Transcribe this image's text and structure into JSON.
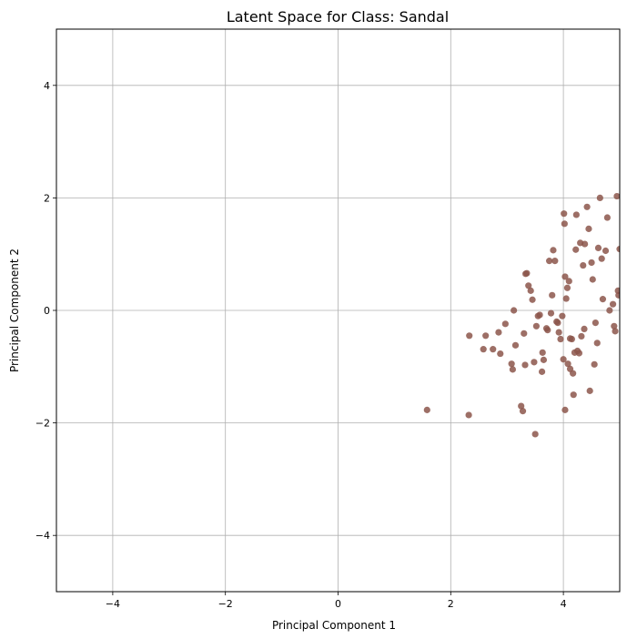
{
  "chart_data": {
    "type": "scatter",
    "title": "Latent Space for Class: Sandal",
    "xlabel": "Principal Component 1",
    "ylabel": "Principal Component 2",
    "xlim": [
      -5,
      5
    ],
    "ylim": [
      -5,
      5
    ],
    "xticks": [
      -4,
      -2,
      0,
      2,
      4
    ],
    "yticks": [
      -4,
      -2,
      0,
      2,
      4
    ],
    "grid": true,
    "marker_color": "#8c564b",
    "points": [
      [
        1.58,
        -1.77
      ],
      [
        2.32,
        -1.86
      ],
      [
        2.33,
        -0.45
      ],
      [
        2.58,
        -0.69
      ],
      [
        2.62,
        -0.45
      ],
      [
        2.75,
        -0.69
      ],
      [
        2.85,
        -0.39
      ],
      [
        2.88,
        -0.77
      ],
      [
        2.97,
        -0.24
      ],
      [
        3.08,
        -0.95
      ],
      [
        3.1,
        -1.05
      ],
      [
        3.12,
        0.0
      ],
      [
        3.15,
        -0.62
      ],
      [
        3.25,
        -1.7
      ],
      [
        3.28,
        -1.79
      ],
      [
        3.3,
        -0.41
      ],
      [
        3.32,
        -0.97
      ],
      [
        3.33,
        0.65
      ],
      [
        3.35,
        0.66
      ],
      [
        3.38,
        0.44
      ],
      [
        3.42,
        0.35
      ],
      [
        3.45,
        0.19
      ],
      [
        3.48,
        -0.92
      ],
      [
        3.5,
        -2.2
      ],
      [
        3.52,
        -0.28
      ],
      [
        3.55,
        -0.1
      ],
      [
        3.58,
        -0.08
      ],
      [
        3.62,
        -1.09
      ],
      [
        3.63,
        -0.75
      ],
      [
        3.65,
        -0.88
      ],
      [
        3.72,
        -0.35
      ],
      [
        3.75,
        0.88
      ],
      [
        3.78,
        -0.05
      ],
      [
        3.8,
        0.27
      ],
      [
        3.82,
        1.07
      ],
      [
        3.85,
        0.88
      ],
      [
        3.88,
        -0.2
      ],
      [
        3.9,
        -0.22
      ],
      [
        3.92,
        -0.39
      ],
      [
        3.95,
        -0.51
      ],
      [
        3.98,
        -0.1
      ],
      [
        4.0,
        -0.87
      ],
      [
        4.01,
        1.72
      ],
      [
        4.02,
        1.54
      ],
      [
        4.03,
        0.6
      ],
      [
        4.05,
        0.21
      ],
      [
        4.07,
        0.4
      ],
      [
        4.08,
        -0.95
      ],
      [
        4.1,
        0.52
      ],
      [
        4.12,
        -1.04
      ],
      [
        4.15,
        -0.51
      ],
      [
        4.17,
        -1.12
      ],
      [
        4.18,
        -1.5
      ],
      [
        4.2,
        -0.75
      ],
      [
        4.22,
        1.08
      ],
      [
        4.23,
        1.7
      ],
      [
        4.28,
        -0.76
      ],
      [
        4.3,
        1.2
      ],
      [
        4.32,
        -0.46
      ],
      [
        4.35,
        0.8
      ],
      [
        4.37,
        -0.33
      ],
      [
        4.38,
        1.18
      ],
      [
        4.42,
        1.84
      ],
      [
        4.45,
        1.45
      ],
      [
        4.47,
        -1.43
      ],
      [
        4.5,
        0.85
      ],
      [
        4.52,
        0.55
      ],
      [
        4.55,
        -0.96
      ],
      [
        4.57,
        -0.22
      ],
      [
        4.6,
        -0.58
      ],
      [
        4.62,
        1.11
      ],
      [
        4.65,
        2.0
      ],
      [
        4.68,
        0.92
      ],
      [
        4.7,
        0.2
      ],
      [
        4.75,
        1.06
      ],
      [
        4.78,
        1.65
      ],
      [
        4.82,
        0.0
      ],
      [
        4.88,
        0.11
      ],
      [
        4.9,
        -0.28
      ],
      [
        4.92,
        -0.37
      ],
      [
        4.95,
        2.03
      ],
      [
        4.97,
        0.35
      ],
      [
        4.98,
        0.27
      ],
      [
        5.0,
        1.09
      ],
      [
        4.03,
        -1.77
      ],
      [
        3.7,
        -0.32
      ],
      [
        4.12,
        -0.5
      ],
      [
        4.25,
        -0.72
      ]
    ]
  }
}
